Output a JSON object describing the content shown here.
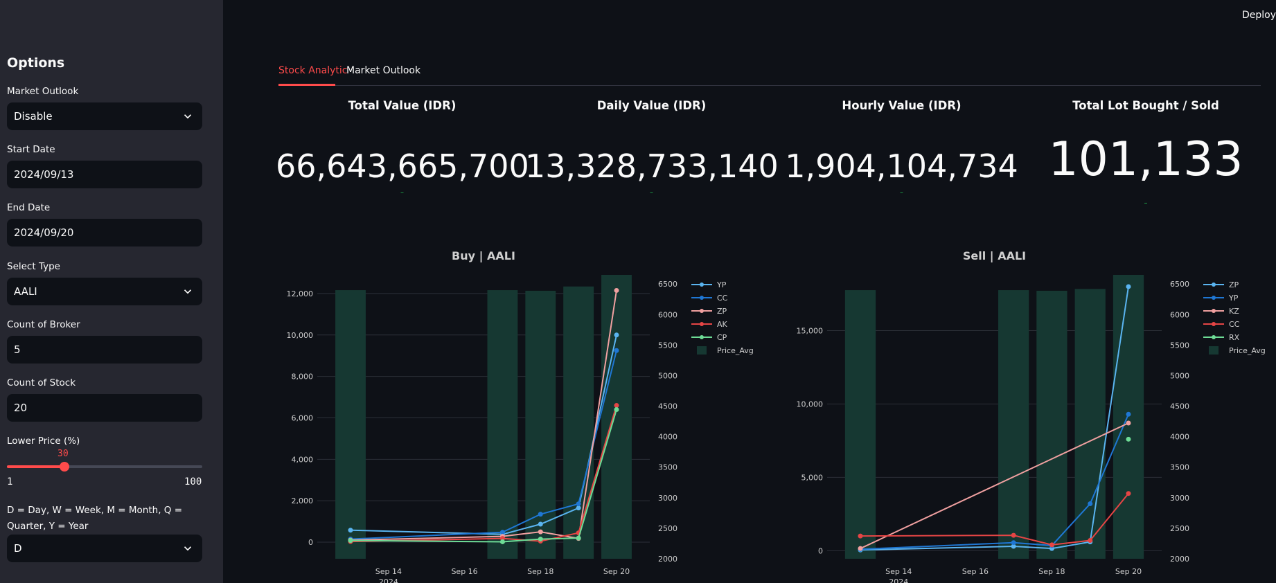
{
  "header": {
    "deploy_label": "Deploy"
  },
  "sidebar": {
    "title": "Options",
    "market_outlook": {
      "label": "Market Outlook",
      "value": "Disable"
    },
    "start_date": {
      "label": "Start Date",
      "value": "2024/09/13"
    },
    "end_date": {
      "label": "End Date",
      "value": "2024/09/20"
    },
    "select_type": {
      "label": "Select Type",
      "value": "AALI"
    },
    "count_broker": {
      "label": "Count of Broker",
      "value": "5"
    },
    "count_stock": {
      "label": "Count of Stock",
      "value": "20"
    },
    "lower_price": {
      "label": "Lower Price (%)",
      "value": "30",
      "value_num": 30,
      "min": "1",
      "max": "100"
    },
    "period": {
      "label": "D = Day, W = Week, M = Month, Q = Quarter, Y = Year",
      "value": "D"
    }
  },
  "tabs": [
    {
      "label": "Stock Analytic",
      "active": true
    },
    {
      "label": "Market Outlook",
      "active": false
    }
  ],
  "metrics": [
    {
      "label": "Total Value (IDR)",
      "value": "66,643,665,700",
      "delta": "–"
    },
    {
      "label": "Daily Value (IDR)",
      "value": "13,328,733,140",
      "delta": "–"
    },
    {
      "label": "Hourly Value (IDR)",
      "value": "1,904,104,734",
      "delta": "–"
    },
    {
      "label": "Total Lot Bought / Sold",
      "value": "101,133",
      "delta": "–"
    }
  ],
  "colors": {
    "accent": "#ff4b4b",
    "bar": "#163832",
    "grid": "#2c3038"
  },
  "chart_data": [
    {
      "type": "line",
      "title": "Buy | AALI",
      "x": [
        "Sep 13",
        "Sep 17",
        "Sep 18",
        "Sep 19",
        "Sep 20"
      ],
      "x_ticks": [
        "Sep 14",
        "Sep 16",
        "Sep 18",
        "Sep 20"
      ],
      "x_tick_index": [
        1,
        3,
        5,
        7
      ],
      "x_year": "2024",
      "y_ticks": [
        "0",
        "2,000",
        "4,000",
        "6,000",
        "8,000",
        "10,000",
        "12,000"
      ],
      "ylim": [
        -800,
        12900
      ],
      "y2_ticks": [
        "2000",
        "2500",
        "3000",
        "3500",
        "4000",
        "4500",
        "5000",
        "5500",
        "6000",
        "6500"
      ],
      "y2lim": [
        2000,
        6650
      ],
      "bars": {
        "name": "Price_Avg",
        "values": [
          6400,
          6400,
          6390,
          6460,
          6650
        ]
      },
      "series": [
        {
          "name": "YP",
          "color": "#5ab4f0",
          "values": [
            580,
            380,
            870,
            1650,
            10000
          ]
        },
        {
          "name": "CC",
          "color": "#1f77d4",
          "values": [
            150,
            480,
            1350,
            1850,
            9250
          ]
        },
        {
          "name": "ZP",
          "color": "#f0a0a0",
          "values": [
            100,
            280,
            500,
            180,
            12150
          ]
        },
        {
          "name": "AK",
          "color": "#e64545",
          "values": [
            30,
            180,
            50,
            450,
            6600
          ]
        },
        {
          "name": "CP",
          "color": "#6edc96",
          "values": [
            80,
            20,
            150,
            200,
            6400
          ]
        }
      ],
      "legend": [
        "YP",
        "CC",
        "ZP",
        "AK",
        "CP",
        "Price_Avg"
      ]
    },
    {
      "type": "line",
      "title": "Sell | AALI",
      "x": [
        "Sep 13",
        "Sep 17",
        "Sep 18",
        "Sep 19",
        "Sep 20"
      ],
      "x_ticks": [
        "Sep 14",
        "Sep 16",
        "Sep 18",
        "Sep 20"
      ],
      "x_tick_index": [
        1,
        3,
        5,
        7
      ],
      "x_year": "2024",
      "y_ticks": [
        "0",
        "5,000",
        "10,000",
        "15,000"
      ],
      "ylim": [
        -550,
        18800
      ],
      "y2_ticks": [
        "2000",
        "2500",
        "3000",
        "3500",
        "4000",
        "4500",
        "5000",
        "5500",
        "6000",
        "6500"
      ],
      "y2lim": [
        2000,
        6650
      ],
      "bars": {
        "name": "Price_Avg",
        "values": [
          6400,
          6400,
          6390,
          6420,
          6650
        ]
      },
      "series": [
        {
          "name": "ZP",
          "color": "#5ab4f0",
          "values": [
            50,
            300,
            150,
            600,
            18000
          ]
        },
        {
          "name": "YP",
          "color": "#1f77d4",
          "values": [
            100,
            550,
            350,
            3200,
            9300
          ]
        },
        {
          "name": "KZ",
          "color": "#f0a0a0",
          "values": [
            150,
            null,
            null,
            null,
            8700
          ]
        },
        {
          "name": "CC",
          "color": "#e64545",
          "values": [
            1000,
            1050,
            400,
            700,
            3900
          ]
        },
        {
          "name": "RX",
          "color": "#6edc96",
          "values": [
            null,
            null,
            null,
            null,
            7600
          ]
        }
      ],
      "legend": [
        "ZP",
        "YP",
        "KZ",
        "CC",
        "RX",
        "Price_Avg"
      ]
    }
  ]
}
